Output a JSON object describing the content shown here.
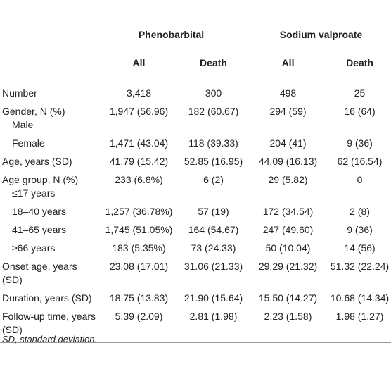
{
  "table": {
    "groups": [
      "Phenobarbital",
      "Sodium valproate"
    ],
    "subheaders": [
      "All",
      "Death",
      "All",
      "Death"
    ],
    "rows": [
      {
        "label": "Number",
        "cells": [
          "3,418",
          "300",
          "498",
          "25"
        ]
      },
      {
        "label": "Gender, N (%)",
        "sublabel": "Male",
        "cells": [
          "1,947 (56.96)",
          "182 (60.67)",
          "294 (59)",
          "16 (64)"
        ]
      },
      {
        "label": "Female",
        "cells": [
          "1,471 (43.04)",
          "118 (39.33)",
          "204 (41)",
          "9 (36)"
        ]
      },
      {
        "label": "Age, years (SD)",
        "cells": [
          "41.79 (15.42)",
          "52.85 (16.95)",
          "44.09 (16.13)",
          "62 (16.54)"
        ]
      },
      {
        "label": "Age group, N (%)",
        "sublabel": "≤17 years",
        "cells": [
          "233 (6.8%)",
          "6 (2)",
          "29 (5.82)",
          "0"
        ]
      },
      {
        "label": "18–40 years",
        "cells": [
          "1,257 (36.78%)",
          "57 (19)",
          "172 (34.54)",
          "2 (8)"
        ]
      },
      {
        "label": "41–65 years",
        "cells": [
          "1,745 (51.05%)",
          "164 (54.67)",
          "247 (49.60)",
          "9 (36)"
        ]
      },
      {
        "label": "≥66 years",
        "cells": [
          "183 (5.35%)",
          "73 (24.33)",
          "50 (10.04)",
          "14 (56)"
        ]
      },
      {
        "label": "Onset age, years (SD)",
        "cells": [
          "23.08 (17.01)",
          "31.06 (21.33)",
          "29.29 (21.32)",
          "51.32 (22.24)"
        ]
      },
      {
        "label": "Duration, years (SD)",
        "cells": [
          "18.75 (13.83)",
          "21.90 (15.64)",
          "15.50 (14.27)",
          "10.68 (14.34)"
        ]
      },
      {
        "label": "Follow-up time, years (SD)",
        "cells": [
          "5.39 (2.09)",
          "2.81 (1.98)",
          "2.23 (1.58)",
          "1.98 (1.27)"
        ]
      }
    ],
    "footnote": "SD, standard deviation."
  }
}
